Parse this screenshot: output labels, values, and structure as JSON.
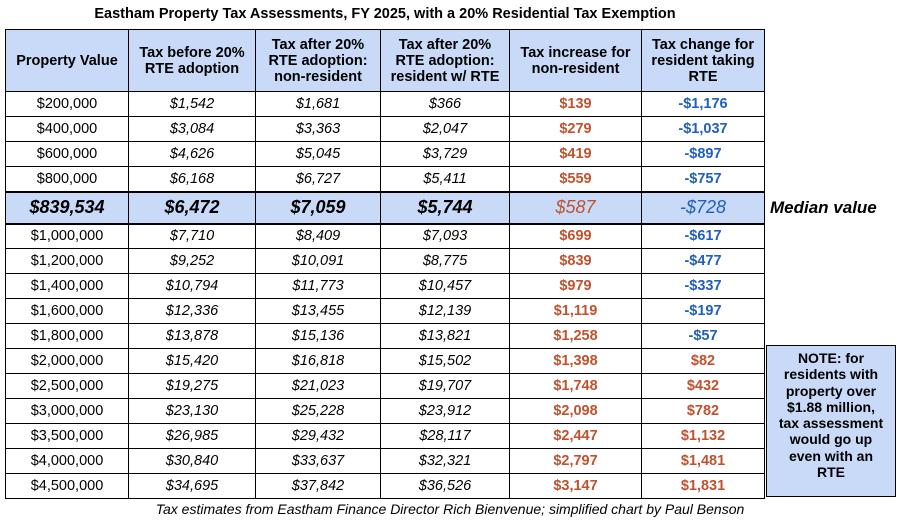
{
  "title": "Eastham Property Tax Assessments, FY 2025, with a 20% Residential Tax Exemption",
  "headers": [
    "Property Value",
    "Tax before 20% RTE adoption",
    "Tax after 20% RTE adoption: non-resident",
    "Tax after 20% RTE adoption: resident w/ RTE",
    "Tax increase for non-resident",
    "Tax change for resident taking RTE"
  ],
  "rows_top": [
    [
      "$200,000",
      "$1,542",
      "$1,681",
      "$366",
      "$139",
      "-$1,176"
    ],
    [
      "$400,000",
      "$3,084",
      "$3,363",
      "$2,047",
      "$279",
      "-$1,037"
    ],
    [
      "$600,000",
      "$4,626",
      "$5,045",
      "$3,729",
      "$419",
      "-$897"
    ],
    [
      "$800,000",
      "$6,168",
      "$6,727",
      "$5,411",
      "$559",
      "-$757"
    ]
  ],
  "median_row": [
    "$839,534",
    "$6,472",
    "$7,059",
    "$5,744",
    "$587",
    "-$728"
  ],
  "median_label": "Median value",
  "rows_bottom": [
    [
      "$1,000,000",
      "$7,710",
      "$8,409",
      "$7,093",
      "$699",
      "-$617"
    ],
    [
      "$1,200,000",
      "$9,252",
      "$10,091",
      "$8,775",
      "$839",
      "-$477"
    ],
    [
      "$1,400,000",
      "$10,794",
      "$11,773",
      "$10,457",
      "$979",
      "-$337"
    ],
    [
      "$1,600,000",
      "$12,336",
      "$13,455",
      "$12,139",
      "$1,119",
      "-$197"
    ],
    [
      "$1,800,000",
      "$13,878",
      "$15,136",
      "$13,821",
      "$1,258",
      "-$57"
    ],
    [
      "$2,000,000",
      "$15,420",
      "$16,818",
      "$15,502",
      "$1,398",
      "$82"
    ],
    [
      "$2,500,000",
      "$19,275",
      "$21,023",
      "$19,707",
      "$1,748",
      "$432"
    ],
    [
      "$3,000,000",
      "$23,130",
      "$25,228",
      "$23,912",
      "$2,098",
      "$782"
    ],
    [
      "$3,500,000",
      "$26,985",
      "$29,432",
      "$28,117",
      "$2,447",
      "$1,132"
    ],
    [
      "$4,000,000",
      "$30,840",
      "$33,637",
      "$32,321",
      "$2,797",
      "$1,481"
    ],
    [
      "$4,500,000",
      "$34,695",
      "$37,842",
      "$36,526",
      "$3,147",
      "$1,831"
    ]
  ],
  "note_lines": [
    "NOTE: for",
    "residents with",
    "property over",
    "$1.88 million,",
    "tax assessment",
    "would go up",
    "even with an",
    "RTE"
  ],
  "footer": "Tax estimates from Eastham Finance Director Rich Bienvenue; simplified chart by Paul Benson",
  "colors": {
    "header_bg": "#c9daf8",
    "increase_red": "#c0522e",
    "decrease_blue": "#1f5fbf"
  }
}
